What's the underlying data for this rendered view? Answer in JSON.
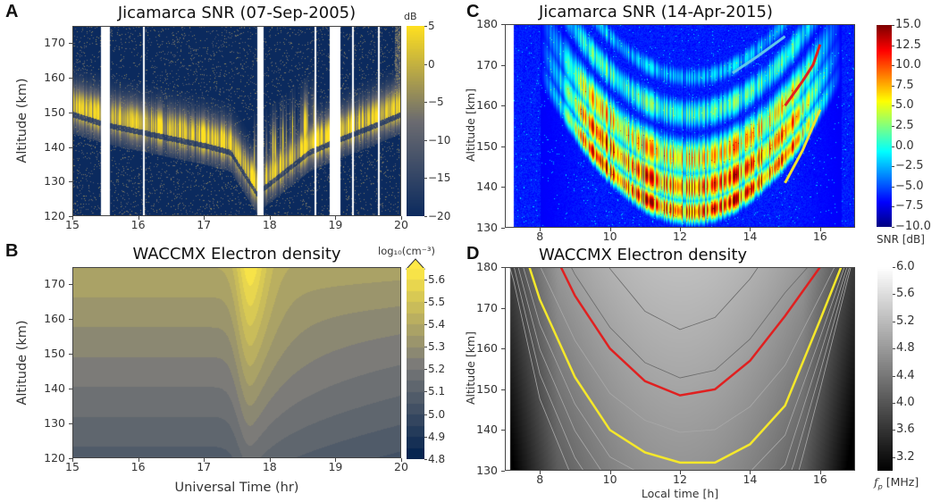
{
  "chart_data": [
    {
      "id": "A",
      "letter": "A",
      "type": "heatmap",
      "title": "Jicamarca SNR (07-Sep-2005)",
      "xlabel": "",
      "ylabel": "Altitude (km)",
      "xlim": [
        15,
        20
      ],
      "ylim": [
        120,
        175
      ],
      "xticks": [
        "15",
        "16",
        "17",
        "18",
        "19",
        "20"
      ],
      "yticks": [
        "120",
        "130",
        "140",
        "150",
        "160",
        "170"
      ],
      "colorbar": {
        "label": "dB",
        "range": [
          -20,
          5
        ],
        "ticks": [
          "5",
          "0",
          "−5",
          "−10",
          "−15",
          "−20"
        ],
        "colormap": [
          "#0b2a5e",
          "#6b6b70",
          "#ffe020"
        ]
      },
      "data_gaps_hr": [
        [
          15.43,
          15.56
        ],
        [
          16.06,
          16.09
        ],
        [
          17.8,
          17.9
        ],
        [
          18.67,
          18.7
        ],
        [
          18.9,
          19.07
        ],
        [
          19.24,
          19.27
        ],
        [
          19.64,
          19.67
        ]
      ],
      "echo_layer_center_km": {
        "x": [
          15,
          15.5,
          16,
          16.5,
          17,
          17.4,
          17.8,
          18.2,
          18.6,
          19.1,
          19.5,
          20
        ],
        "y": [
          150,
          147,
          145,
          143,
          141,
          139,
          127,
          133,
          139,
          143,
          146,
          150
        ]
      }
    },
    {
      "id": "B",
      "letter": "B",
      "type": "heatmap",
      "title": "WACCMX Electron density",
      "xlabel": "Universal Time (hr)",
      "ylabel": "Altitude (km)",
      "xlim": [
        15,
        20
      ],
      "ylim": [
        120,
        175
      ],
      "xticks": [
        "15",
        "16",
        "17",
        "18",
        "19",
        "20"
      ],
      "yticks": [
        "120",
        "130",
        "140",
        "150",
        "160",
        "170"
      ],
      "colorbar": {
        "label": "log₁₀(cm⁻³)",
        "range": [
          4.8,
          5.65
        ],
        "ticks": [
          "5.6",
          "5.5",
          "5.4",
          "5.3",
          "5.2",
          "5.1",
          "5.0",
          "4.9",
          "4.8"
        ],
        "colormap": [
          "#00204d",
          "#7c7b78",
          "#ffe945"
        ]
      },
      "enhancement_peak_hr": 17.7
    },
    {
      "id": "C",
      "letter": "C",
      "type": "heatmap",
      "title": "Jicamarca SNR (14-Apr-2015)",
      "xlabel": "",
      "ylabel": "Altitude [km]",
      "xlim": [
        7,
        17
      ],
      "ylim": [
        130,
        180
      ],
      "xticks": [
        "8",
        "10",
        "12",
        "14",
        "16"
      ],
      "yticks": [
        "130",
        "140",
        "150",
        "160",
        "170",
        "180"
      ],
      "colorbar": {
        "label": "SNR [dB]",
        "range": [
          -10,
          15
        ],
        "ticks": [
          "15.0",
          "12.5",
          "10.0",
          "7.5",
          "5.0",
          "2.5",
          "0.0",
          "−2.5",
          "−5.0",
          "−7.5",
          "−10.0"
        ],
        "colormap": "jet"
      },
      "overlay_lines": [
        {
          "name": "cyan",
          "color": "#5fc8e8",
          "x": [
            13.5,
            14.2,
            15.0
          ],
          "y": [
            168,
            172,
            177
          ]
        },
        {
          "name": "red",
          "color": "#e02020",
          "x": [
            15.0,
            15.5,
            15.8,
            16.0
          ],
          "y": [
            160,
            166,
            170,
            175
          ]
        },
        {
          "name": "yellow",
          "color": "#f0e030",
          "x": [
            15.0,
            15.5,
            16.0
          ],
          "y": [
            141,
            149,
            159
          ]
        }
      ]
    },
    {
      "id": "D",
      "letter": "D",
      "type": "heatmap",
      "title": "WACCMX Electron density",
      "xlabel": "Local time [h]",
      "ylabel": "Altitude [km]",
      "xlim": [
        7,
        17
      ],
      "ylim": [
        130,
        180
      ],
      "xticks": [
        "8",
        "10",
        "12",
        "14",
        "16"
      ],
      "yticks": [
        "130",
        "140",
        "150",
        "160",
        "170",
        "180"
      ],
      "colorbar": {
        "label_symbol": "f",
        "label_sub": "p",
        "label_unit": "[MHz]",
        "range": [
          3.0,
          6.0
        ],
        "ticks": [
          "6.0",
          "5.6",
          "5.2",
          "4.8",
          "4.4",
          "4.0",
          "3.6",
          "3.2"
        ],
        "colormap": [
          "#000000",
          "#ffffff"
        ]
      },
      "contours": [
        {
          "name": "red",
          "color": "#e02020",
          "x": [
            8.6,
            9,
            10,
            11,
            12,
            13,
            14,
            15,
            16
          ],
          "y": [
            180,
            173,
            160,
            152,
            148.5,
            150,
            157,
            168,
            180
          ]
        },
        {
          "name": "yellow",
          "color": "#f5e82a",
          "x": [
            7.7,
            8,
            9,
            10,
            11,
            12,
            13,
            14,
            15,
            16,
            16.6
          ],
          "y": [
            180,
            172,
            153,
            140,
            134.5,
            132,
            132,
            136.5,
            146,
            167,
            180
          ]
        }
      ]
    }
  ]
}
